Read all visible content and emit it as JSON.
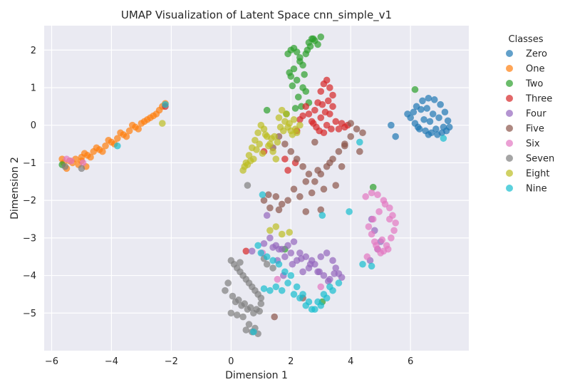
{
  "chart_data": {
    "type": "scatter",
    "title": "UMAP Visualization of Latent Space cnn_simple_v1",
    "xlabel": "Dimension 1",
    "ylabel": "Dimension 2",
    "xlim": [
      -6.25,
      7.95
    ],
    "ylim": [
      -6.0,
      2.65
    ],
    "xticks": [
      -6,
      -4,
      -2,
      0,
      2,
      4,
      6
    ],
    "yticks": [
      -5,
      -4,
      -3,
      -2,
      -1,
      0,
      1,
      2
    ],
    "xtick_labels": [
      "−6",
      "−4",
      "−2",
      "0",
      "2",
      "4",
      "6"
    ],
    "ytick_labels": [
      "−5",
      "−4",
      "−3",
      "−2",
      "−1",
      "0",
      "1",
      "2"
    ],
    "grid": true,
    "legend": {
      "title": "Classes",
      "placement": "outside-right"
    },
    "series": [
      {
        "name": "Zero",
        "color": "#1f77b4",
        "x": [
          6.2,
          6.4,
          6.6,
          6.8,
          7.0,
          7.15,
          7.25,
          7.3,
          7.2,
          7.05,
          6.9,
          6.7,
          6.5,
          6.3,
          6.15,
          6.0,
          5.9,
          6.1,
          6.35,
          6.55,
          6.75,
          6.95,
          6.45,
          6.65,
          6.25,
          5.5,
          5.35,
          7.1,
          6.85,
          6.6
        ],
        "y": [
          0.5,
          0.65,
          0.72,
          0.68,
          0.55,
          0.35,
          0.12,
          -0.05,
          -0.15,
          -0.2,
          -0.25,
          -0.2,
          -0.15,
          -0.1,
          0.05,
          0.2,
          0.3,
          0.35,
          0.42,
          0.45,
          0.3,
          0.2,
          0.15,
          0.1,
          -0.05,
          -0.3,
          0.0,
          -0.05,
          -0.1,
          -0.25
        ]
      },
      {
        "name": "One",
        "color": "#ff7f0e",
        "x": [
          -5.6,
          -5.4,
          -5.2,
          -5.0,
          -4.8,
          -4.6,
          -4.4,
          -4.2,
          -4.0,
          -3.8,
          -3.6,
          -3.4,
          -3.2,
          -3.0,
          -2.8,
          -2.6,
          -2.4,
          -2.3,
          -2.2,
          -2.5,
          -3.1,
          -3.5,
          -3.9,
          -4.3,
          -4.7,
          -5.1,
          -5.5,
          -5.3,
          -4.9,
          -4.5,
          -4.1,
          -3.7,
          -3.3,
          -2.9,
          -2.7,
          -5.65,
          -5.0,
          -4.85
        ],
        "y": [
          -1.0,
          -0.95,
          -0.9,
          -0.85,
          -0.8,
          -0.7,
          -0.65,
          -0.55,
          -0.45,
          -0.35,
          -0.25,
          -0.15,
          -0.05,
          0.05,
          0.15,
          0.25,
          0.4,
          0.5,
          0.58,
          0.3,
          -0.1,
          -0.3,
          -0.5,
          -0.7,
          -0.85,
          -1.05,
          -1.15,
          -1.0,
          -0.75,
          -0.6,
          -0.4,
          -0.2,
          0.0,
          0.1,
          0.2,
          -0.9,
          -0.95,
          -1.1
        ]
      },
      {
        "name": "Two",
        "color": "#2ca02c",
        "x": [
          1.9,
          2.0,
          2.1,
          2.2,
          2.3,
          2.4,
          2.5,
          2.6,
          2.7,
          2.8,
          2.9,
          3.0,
          2.65,
          2.75,
          2.55,
          2.1,
          2.0,
          2.2,
          2.4,
          1.95,
          2.3,
          2.45,
          2.5,
          2.6,
          2.35,
          2.25,
          2.15,
          1.85,
          2.05,
          6.15,
          1.2,
          4.75,
          -5.65,
          1.8,
          3.05
        ],
        "y": [
          1.9,
          2.0,
          2.05,
          1.95,
          1.8,
          1.6,
          1.9,
          2.2,
          2.3,
          2.25,
          2.15,
          2.35,
          2.1,
          2.3,
          2.0,
          1.5,
          1.3,
          1.2,
          1.0,
          1.4,
          1.7,
          1.35,
          0.9,
          0.6,
          0.5,
          0.75,
          0.45,
          0.3,
          1.05,
          0.95,
          0.4,
          -1.65,
          -1.05,
          -3.3,
          -4.7
        ]
      },
      {
        "name": "Three",
        "color": "#d62728",
        "x": [
          3.0,
          3.1,
          3.2,
          3.3,
          3.4,
          2.9,
          2.8,
          3.0,
          3.2,
          3.5,
          3.6,
          3.7,
          3.8,
          3.9,
          3.3,
          3.1,
          2.95,
          2.7,
          2.6,
          2.5,
          2.4,
          2.3,
          3.4,
          3.25,
          3.15,
          2.85,
          2.75,
          3.05,
          3.35,
          1.8,
          1.9,
          1.1,
          0.5,
          -2.2,
          2.15,
          2.2
        ],
        "y": [
          0.9,
          1.1,
          1.2,
          1.0,
          0.8,
          0.6,
          0.4,
          0.2,
          0.0,
          0.1,
          -0.1,
          0.05,
          -0.05,
          0.0,
          0.3,
          -0.2,
          -0.15,
          0.1,
          0.3,
          0.5,
          0.25,
          0.15,
          0.5,
          0.65,
          0.35,
          -0.05,
          0.05,
          0.55,
          -0.1,
          -0.9,
          -1.2,
          -0.7,
          -3.35,
          0.5,
          -1.0,
          -0.15
        ]
      },
      {
        "name": "Four",
        "color": "#9467bd",
        "x": [
          1.5,
          1.7,
          1.9,
          2.1,
          2.3,
          2.5,
          2.7,
          2.9,
          3.1,
          3.3,
          3.5,
          3.4,
          3.2,
          3.0,
          2.8,
          2.6,
          2.4,
          2.2,
          2.0,
          1.8,
          1.6,
          1.4,
          1.2,
          1.3,
          1.55,
          1.75,
          2.05,
          2.35,
          2.65,
          2.95,
          3.25,
          3.45,
          4.7,
          4.8,
          5.0,
          4.65,
          1.1,
          0.7,
          4.9,
          3.6,
          3.7
        ],
        "y": [
          -3.2,
          -3.3,
          -3.2,
          -3.1,
          -3.4,
          -3.5,
          -3.6,
          -3.9,
          -4.0,
          -4.1,
          -3.8,
          -3.6,
          -3.4,
          -3.5,
          -3.7,
          -3.8,
          -3.9,
          -3.6,
          -3.4,
          -3.5,
          -3.3,
          -3.25,
          -2.4,
          -3.0,
          -3.6,
          -4.0,
          -3.7,
          -3.55,
          -3.7,
          -3.9,
          -4.15,
          -3.95,
          -2.5,
          -2.8,
          -3.1,
          -3.6,
          -3.15,
          -3.35,
          -3.3,
          -3.95,
          -4.05
        ]
      },
      {
        "name": "Five",
        "color": "#8c564b",
        "x": [
          1.6,
          1.8,
          2.0,
          2.2,
          2.4,
          2.6,
          2.8,
          3.0,
          3.2,
          3.4,
          3.6,
          3.8,
          4.0,
          4.2,
          4.4,
          3.5,
          3.1,
          2.7,
          2.3,
          1.9,
          1.5,
          1.1,
          1.3,
          1.7,
          2.1,
          2.5,
          2.9,
          3.3,
          3.7,
          4.3,
          1.4,
          1.25,
          2.5,
          3.0,
          1.6,
          3.8,
          4.0,
          2.8,
          2.4,
          1.45
        ],
        "y": [
          -0.3,
          -0.5,
          -0.7,
          -0.9,
          -1.1,
          -1.3,
          -1.5,
          -1.3,
          -1.1,
          -0.9,
          -0.7,
          -0.5,
          -0.3,
          -0.1,
          -0.2,
          -1.6,
          -1.7,
          -1.8,
          -1.9,
          -2.0,
          -1.9,
          -2.0,
          -2.2,
          -2.1,
          -1.7,
          -1.5,
          -1.2,
          -1.0,
          -1.1,
          -0.7,
          -0.6,
          -1.85,
          -2.3,
          -2.25,
          -2.25,
          -0.55,
          0.05,
          -0.45,
          -4.6,
          -5.1
        ]
      },
      {
        "name": "Six",
        "color": "#e377c2",
        "x": [
          4.5,
          4.7,
          4.9,
          5.1,
          5.3,
          5.4,
          5.5,
          5.45,
          5.35,
          5.2,
          5.1,
          5.0,
          4.9,
          4.8,
          4.7,
          4.6,
          4.75,
          4.95,
          5.15,
          5.3,
          4.85,
          5.05,
          5.25,
          -5.5,
          -5.35,
          -4.95,
          1.05,
          1.55,
          3.0,
          4.55
        ],
        "y": [
          -1.9,
          -1.8,
          -1.85,
          -2.0,
          -2.2,
          -2.4,
          -2.6,
          -2.8,
          -3.0,
          -3.2,
          -3.35,
          -3.4,
          -3.3,
          -3.1,
          -2.9,
          -2.7,
          -2.5,
          -2.3,
          -2.1,
          -2.5,
          -3.2,
          -3.05,
          -3.3,
          -0.9,
          -0.95,
          -1.0,
          -3.4,
          -4.1,
          -4.3,
          -3.5
        ]
      },
      {
        "name": "Seven",
        "color": "#7f7f7f",
        "x": [
          0.0,
          0.1,
          0.2,
          0.3,
          0.4,
          0.5,
          0.6,
          0.7,
          0.8,
          0.9,
          1.0,
          0.15,
          0.35,
          0.55,
          0.75,
          0.95,
          -0.1,
          -0.2,
          0.05,
          0.25,
          0.45,
          0.65,
          0.85,
          0.0,
          0.2,
          0.4,
          0.6,
          0.8,
          1.0,
          1.2,
          1.4,
          0.5,
          0.7,
          0.9,
          -5.0,
          -5.55,
          1.1,
          0.55,
          0.3
        ],
        "y": [
          -3.6,
          -3.7,
          -3.8,
          -3.9,
          -4.0,
          -4.1,
          -4.2,
          -4.3,
          -4.4,
          -4.5,
          -4.6,
          -4.7,
          -4.8,
          -4.9,
          -5.0,
          -4.95,
          -4.2,
          -4.4,
          -4.55,
          -4.65,
          -4.75,
          -4.85,
          -4.9,
          -5.0,
          -5.05,
          -5.1,
          -5.3,
          -5.4,
          -4.75,
          -3.7,
          -3.8,
          -5.45,
          -5.5,
          -5.55,
          -1.15,
          -1.1,
          -3.55,
          -1.6,
          -3.65
        ]
      },
      {
        "name": "Eight",
        "color": "#bcbd22",
        "x": [
          0.4,
          0.5,
          0.6,
          0.7,
          0.8,
          0.9,
          1.0,
          1.1,
          1.2,
          1.3,
          1.4,
          1.5,
          1.6,
          1.7,
          1.8,
          1.9,
          2.0,
          2.1,
          2.2,
          2.3,
          0.55,
          0.75,
          0.95,
          1.15,
          1.35,
          1.55,
          1.75,
          1.95,
          2.15,
          0.45,
          0.65,
          0.85,
          1.05,
          1.25,
          1.45,
          1.65,
          1.85,
          2.05,
          -2.3,
          1.3,
          1.5,
          1.7,
          1.95
        ],
        "y": [
          -1.2,
          -1.0,
          -0.8,
          -0.6,
          -0.4,
          -0.2,
          0.0,
          -0.1,
          -0.3,
          -0.5,
          -0.7,
          -0.9,
          0.2,
          0.4,
          0.1,
          -0.05,
          -0.15,
          0.15,
          -0.2,
          0.0,
          -1.05,
          -0.9,
          -0.5,
          -0.25,
          -0.35,
          -0.45,
          -0.15,
          0.05,
          -0.1,
          -1.1,
          -0.95,
          -0.65,
          -0.75,
          -0.55,
          -0.3,
          -0.05,
          0.3,
          -0.25,
          0.05,
          -2.8,
          -2.7,
          -2.9,
          -2.85
        ]
      },
      {
        "name": "Nine",
        "color": "#17becf",
        "x": [
          1.0,
          1.2,
          1.4,
          1.6,
          1.8,
          2.0,
          2.2,
          2.4,
          2.6,
          2.8,
          3.0,
          3.2,
          3.4,
          3.6,
          1.5,
          1.7,
          1.9,
          2.1,
          2.3,
          2.5,
          2.7,
          2.9,
          3.1,
          3.3,
          1.3,
          1.1,
          0.9,
          7.1,
          4.3,
          -3.8,
          -2.2,
          1.05,
          3.95,
          3.05,
          0.75,
          4.7,
          4.4
        ],
        "y": [
          -3.4,
          -3.5,
          -3.6,
          -3.7,
          -3.9,
          -4.0,
          -4.3,
          -4.5,
          -4.7,
          -4.9,
          -4.8,
          -4.6,
          -4.4,
          -4.2,
          -4.3,
          -4.4,
          -4.2,
          -4.5,
          -4.6,
          -4.8,
          -4.9,
          -4.7,
          -4.5,
          -4.3,
          -4.4,
          -4.35,
          -3.2,
          -0.35,
          -0.45,
          -0.55,
          0.55,
          -1.85,
          -2.3,
          -2.4,
          -5.5,
          -3.75,
          -3.7
        ]
      }
    ]
  }
}
